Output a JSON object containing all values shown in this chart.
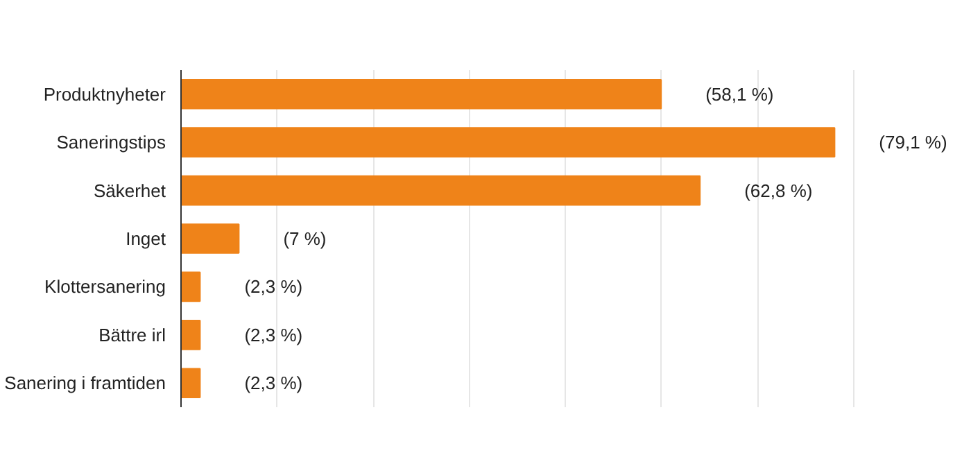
{
  "chart_data": {
    "type": "bar",
    "orientation": "horizontal",
    "categories": [
      "Produktnyheter",
      "Saneringstips",
      "Säkerhet",
      "Inget",
      "Klottersanering",
      "Bättre irl",
      "Sanering i framtiden"
    ],
    "values": [
      58.1,
      79.1,
      62.8,
      7,
      2.3,
      2.3,
      2.3
    ],
    "value_labels": [
      "(58,1 %)",
      "(79,1 %)",
      "(62,8 %)",
      "(7 %)",
      "(2,3 %)",
      "(2,3 %)",
      "(2,3 %)"
    ],
    "color": "#ef8319",
    "xticks": [
      {
        "value": 0,
        "label": null
      },
      {
        "value": 11.63,
        "label": null
      },
      {
        "value": 23.26,
        "label": null
      },
      {
        "value": 34.88,
        "label": null
      },
      {
        "value": 46.51,
        "label": null
      },
      {
        "value": 58.14,
        "label": null
      },
      {
        "value": 69.77,
        "label": null
      },
      {
        "value": 81.4,
        "label": null
      }
    ],
    "grid": "x",
    "tick_labels": "y"
  }
}
